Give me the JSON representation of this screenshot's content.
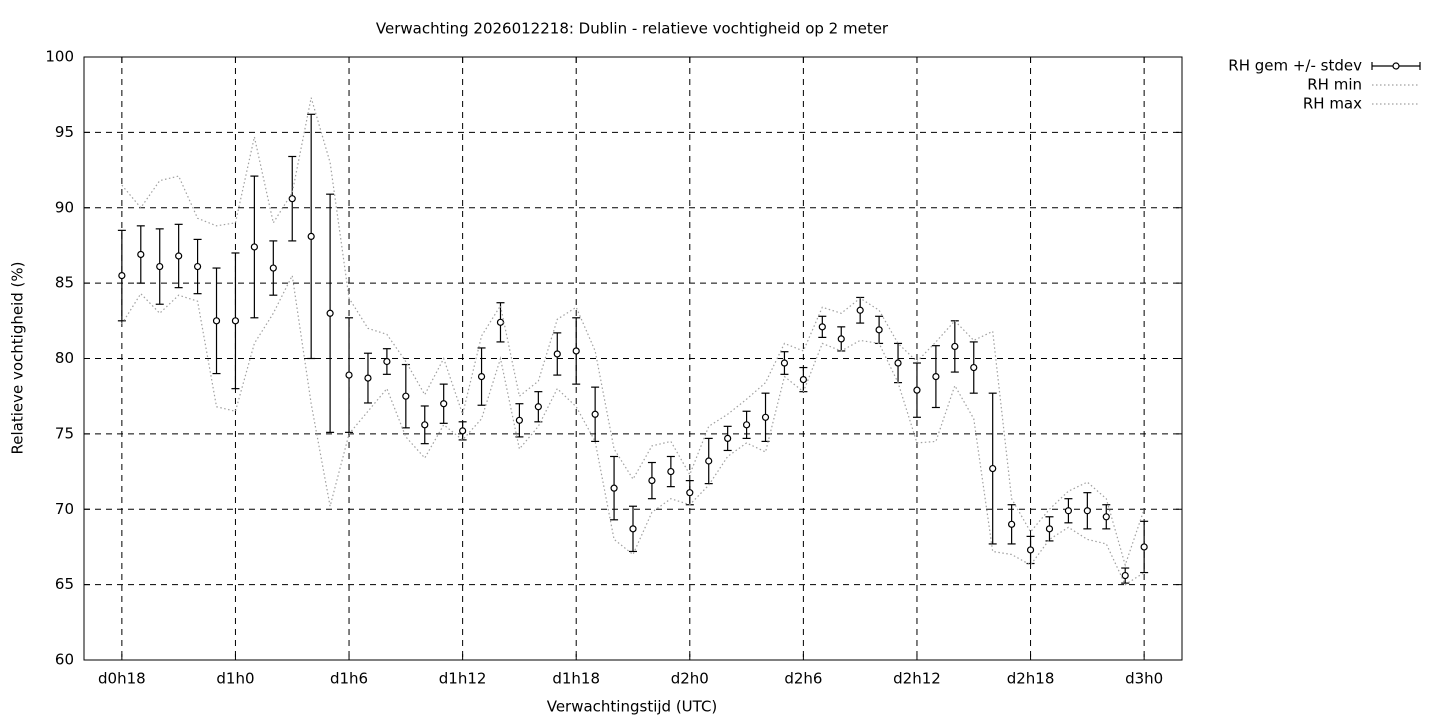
{
  "chart_data": {
    "type": "errorbar",
    "title": "Verwachting 2026012218: Dublin - relatieve vochtigheid op 2 meter",
    "x_label": "Verwachtingstijd (UTC)",
    "y_label": "Relatieve vochtigheid (%)",
    "x": [
      18,
      19,
      20,
      21,
      22,
      23,
      24,
      25,
      26,
      27,
      28,
      29,
      30,
      31,
      32,
      33,
      34,
      35,
      36,
      37,
      38,
      39,
      40,
      41,
      42,
      43,
      44,
      45,
      46,
      47,
      48,
      49,
      50,
      51,
      52,
      53,
      54,
      55,
      56,
      57,
      58,
      59,
      60,
      61,
      62,
      63,
      64,
      65,
      66,
      67,
      68,
      69,
      70,
      71,
      72
    ],
    "series": [
      {
        "name": "RH gem +/- stdev",
        "color": "#000000",
        "values": [
          85.5,
          86.9,
          86.1,
          86.8,
          86.1,
          82.5,
          82.5,
          87.4,
          86.0,
          90.6,
          88.1,
          83.0,
          78.9,
          78.7,
          79.8,
          77.5,
          75.6,
          77.0,
          75.2,
          78.8,
          82.4,
          75.9,
          76.8,
          80.3,
          80.5,
          76.3,
          71.4,
          68.7,
          71.9,
          72.5,
          71.1,
          73.2,
          74.7,
          75.6,
          76.1,
          79.7,
          78.6,
          82.1,
          81.3,
          83.2,
          81.9,
          79.7,
          77.9,
          78.8,
          80.8,
          79.4,
          72.7,
          69.0,
          67.3,
          68.7,
          69.9,
          69.9,
          69.5,
          65.6,
          67.5
        ],
        "errors": [
          3.0,
          1.9,
          2.5,
          2.1,
          1.8,
          3.5,
          4.5,
          4.7,
          1.8,
          2.8,
          8.1,
          7.9,
          3.8,
          1.65,
          0.85,
          2.1,
          1.25,
          1.3,
          0.6,
          1.9,
          1.3,
          1.1,
          1.0,
          1.4,
          2.2,
          1.8,
          2.1,
          1.5,
          1.2,
          1.0,
          0.8,
          1.5,
          0.8,
          0.9,
          1.6,
          0.75,
          0.8,
          0.7,
          0.8,
          0.85,
          0.9,
          1.3,
          1.8,
          2.05,
          1.7,
          1.7,
          5.0,
          1.3,
          0.9,
          0.8,
          0.8,
          1.2,
          0.8,
          0.5,
          1.7
        ]
      },
      {
        "name": "RH min",
        "color": "#a0a0a0",
        "values": [
          82.3,
          84.3,
          83.0,
          84.2,
          83.8,
          76.8,
          76.5,
          81.0,
          83.0,
          85.5,
          77.0,
          70.2,
          75.0,
          76.5,
          78.0,
          74.8,
          73.4,
          75.6,
          74.6,
          76.0,
          80.0,
          74.0,
          75.5,
          78.0,
          76.8,
          74.5,
          68.0,
          67.0,
          69.8,
          70.7,
          70.3,
          71.6,
          73.5,
          74.4,
          73.8,
          78.8,
          77.8,
          81.0,
          80.5,
          81.2,
          81.0,
          78.4,
          74.4,
          74.5,
          78.2,
          76.0,
          67.2,
          67.0,
          66.3,
          68.0,
          68.8,
          68.0,
          67.7,
          65.0,
          65.8
        ]
      },
      {
        "name": "RH max",
        "color": "#a0a0a0",
        "values": [
          91.5,
          90.0,
          91.8,
          92.1,
          89.3,
          88.8,
          89.0,
          94.7,
          89.0,
          91.0,
          97.3,
          93.0,
          84.0,
          82.0,
          81.6,
          79.8,
          77.6,
          80.0,
          76.3,
          81.5,
          83.5,
          77.5,
          78.5,
          82.6,
          83.4,
          80.5,
          74.0,
          72.0,
          74.2,
          74.5,
          72.3,
          75.5,
          76.3,
          77.3,
          78.4,
          81.0,
          80.5,
          83.4,
          83.0,
          84.0,
          83.2,
          81.0,
          79.8,
          81.1,
          82.5,
          81.2,
          81.8,
          70.7,
          68.5,
          70.0,
          71.2,
          71.8,
          70.7,
          66.3,
          70.0
        ]
      }
    ],
    "xlim": [
      16,
      74
    ],
    "xticks": [
      {
        "value": 18,
        "label": "d0h18"
      },
      {
        "value": 24,
        "label": "d1h0"
      },
      {
        "value": 30,
        "label": "d1h6"
      },
      {
        "value": 36,
        "label": "d1h12"
      },
      {
        "value": 42,
        "label": "d1h18"
      },
      {
        "value": 48,
        "label": "d2h0"
      },
      {
        "value": 54,
        "label": "d2h6"
      },
      {
        "value": 60,
        "label": "d2h12"
      },
      {
        "value": 66,
        "label": "d2h18"
      },
      {
        "value": 72,
        "label": "d3h0"
      }
    ],
    "ylim": [
      60,
      100
    ],
    "yticks": [
      60,
      65,
      70,
      75,
      80,
      85,
      90,
      95,
      100
    ],
    "grid": true,
    "legend": "outside-top-right"
  }
}
